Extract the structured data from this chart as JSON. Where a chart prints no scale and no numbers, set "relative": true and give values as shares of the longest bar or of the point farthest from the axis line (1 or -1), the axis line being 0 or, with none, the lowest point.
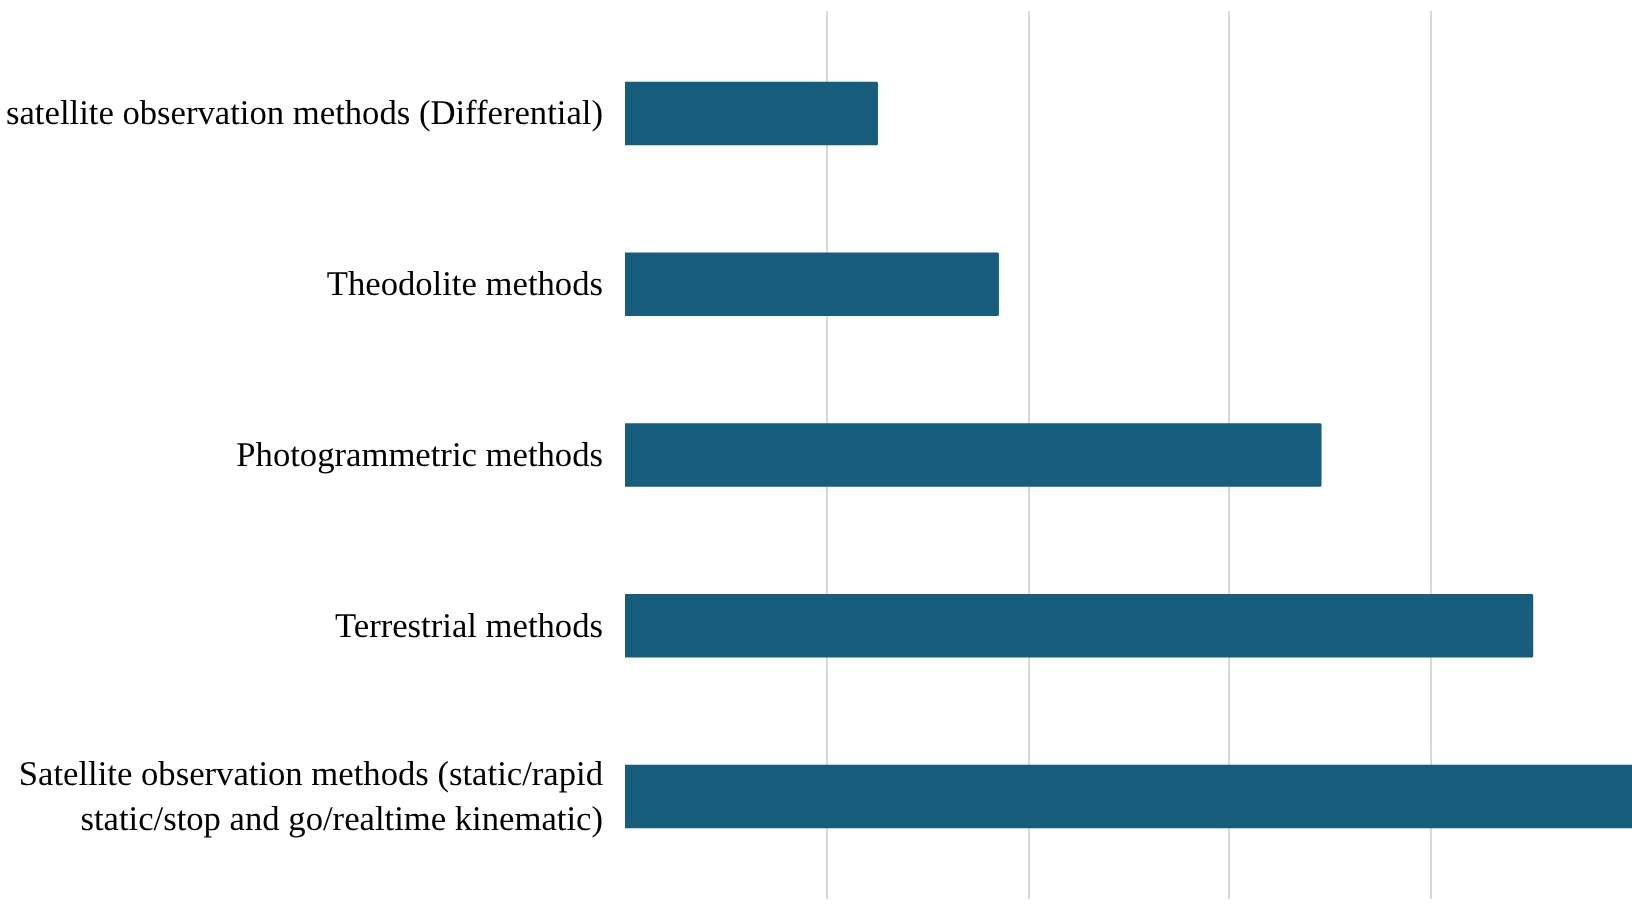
{
  "chart_data": {
    "type": "bar",
    "orientation": "horizontal",
    "relative": true,
    "grid": "x",
    "categories": [
      "satellite observation methods (Differential)",
      "Theodolite methods",
      "Photogrammetric methods",
      "Terrestrial methods",
      "Satellite observation methods (static/rapid static/stop and go/realtime kinematic)"
    ],
    "values": [
      0.25,
      0.37,
      0.69,
      0.9,
      1
    ],
    "color": "#175e7e"
  }
}
